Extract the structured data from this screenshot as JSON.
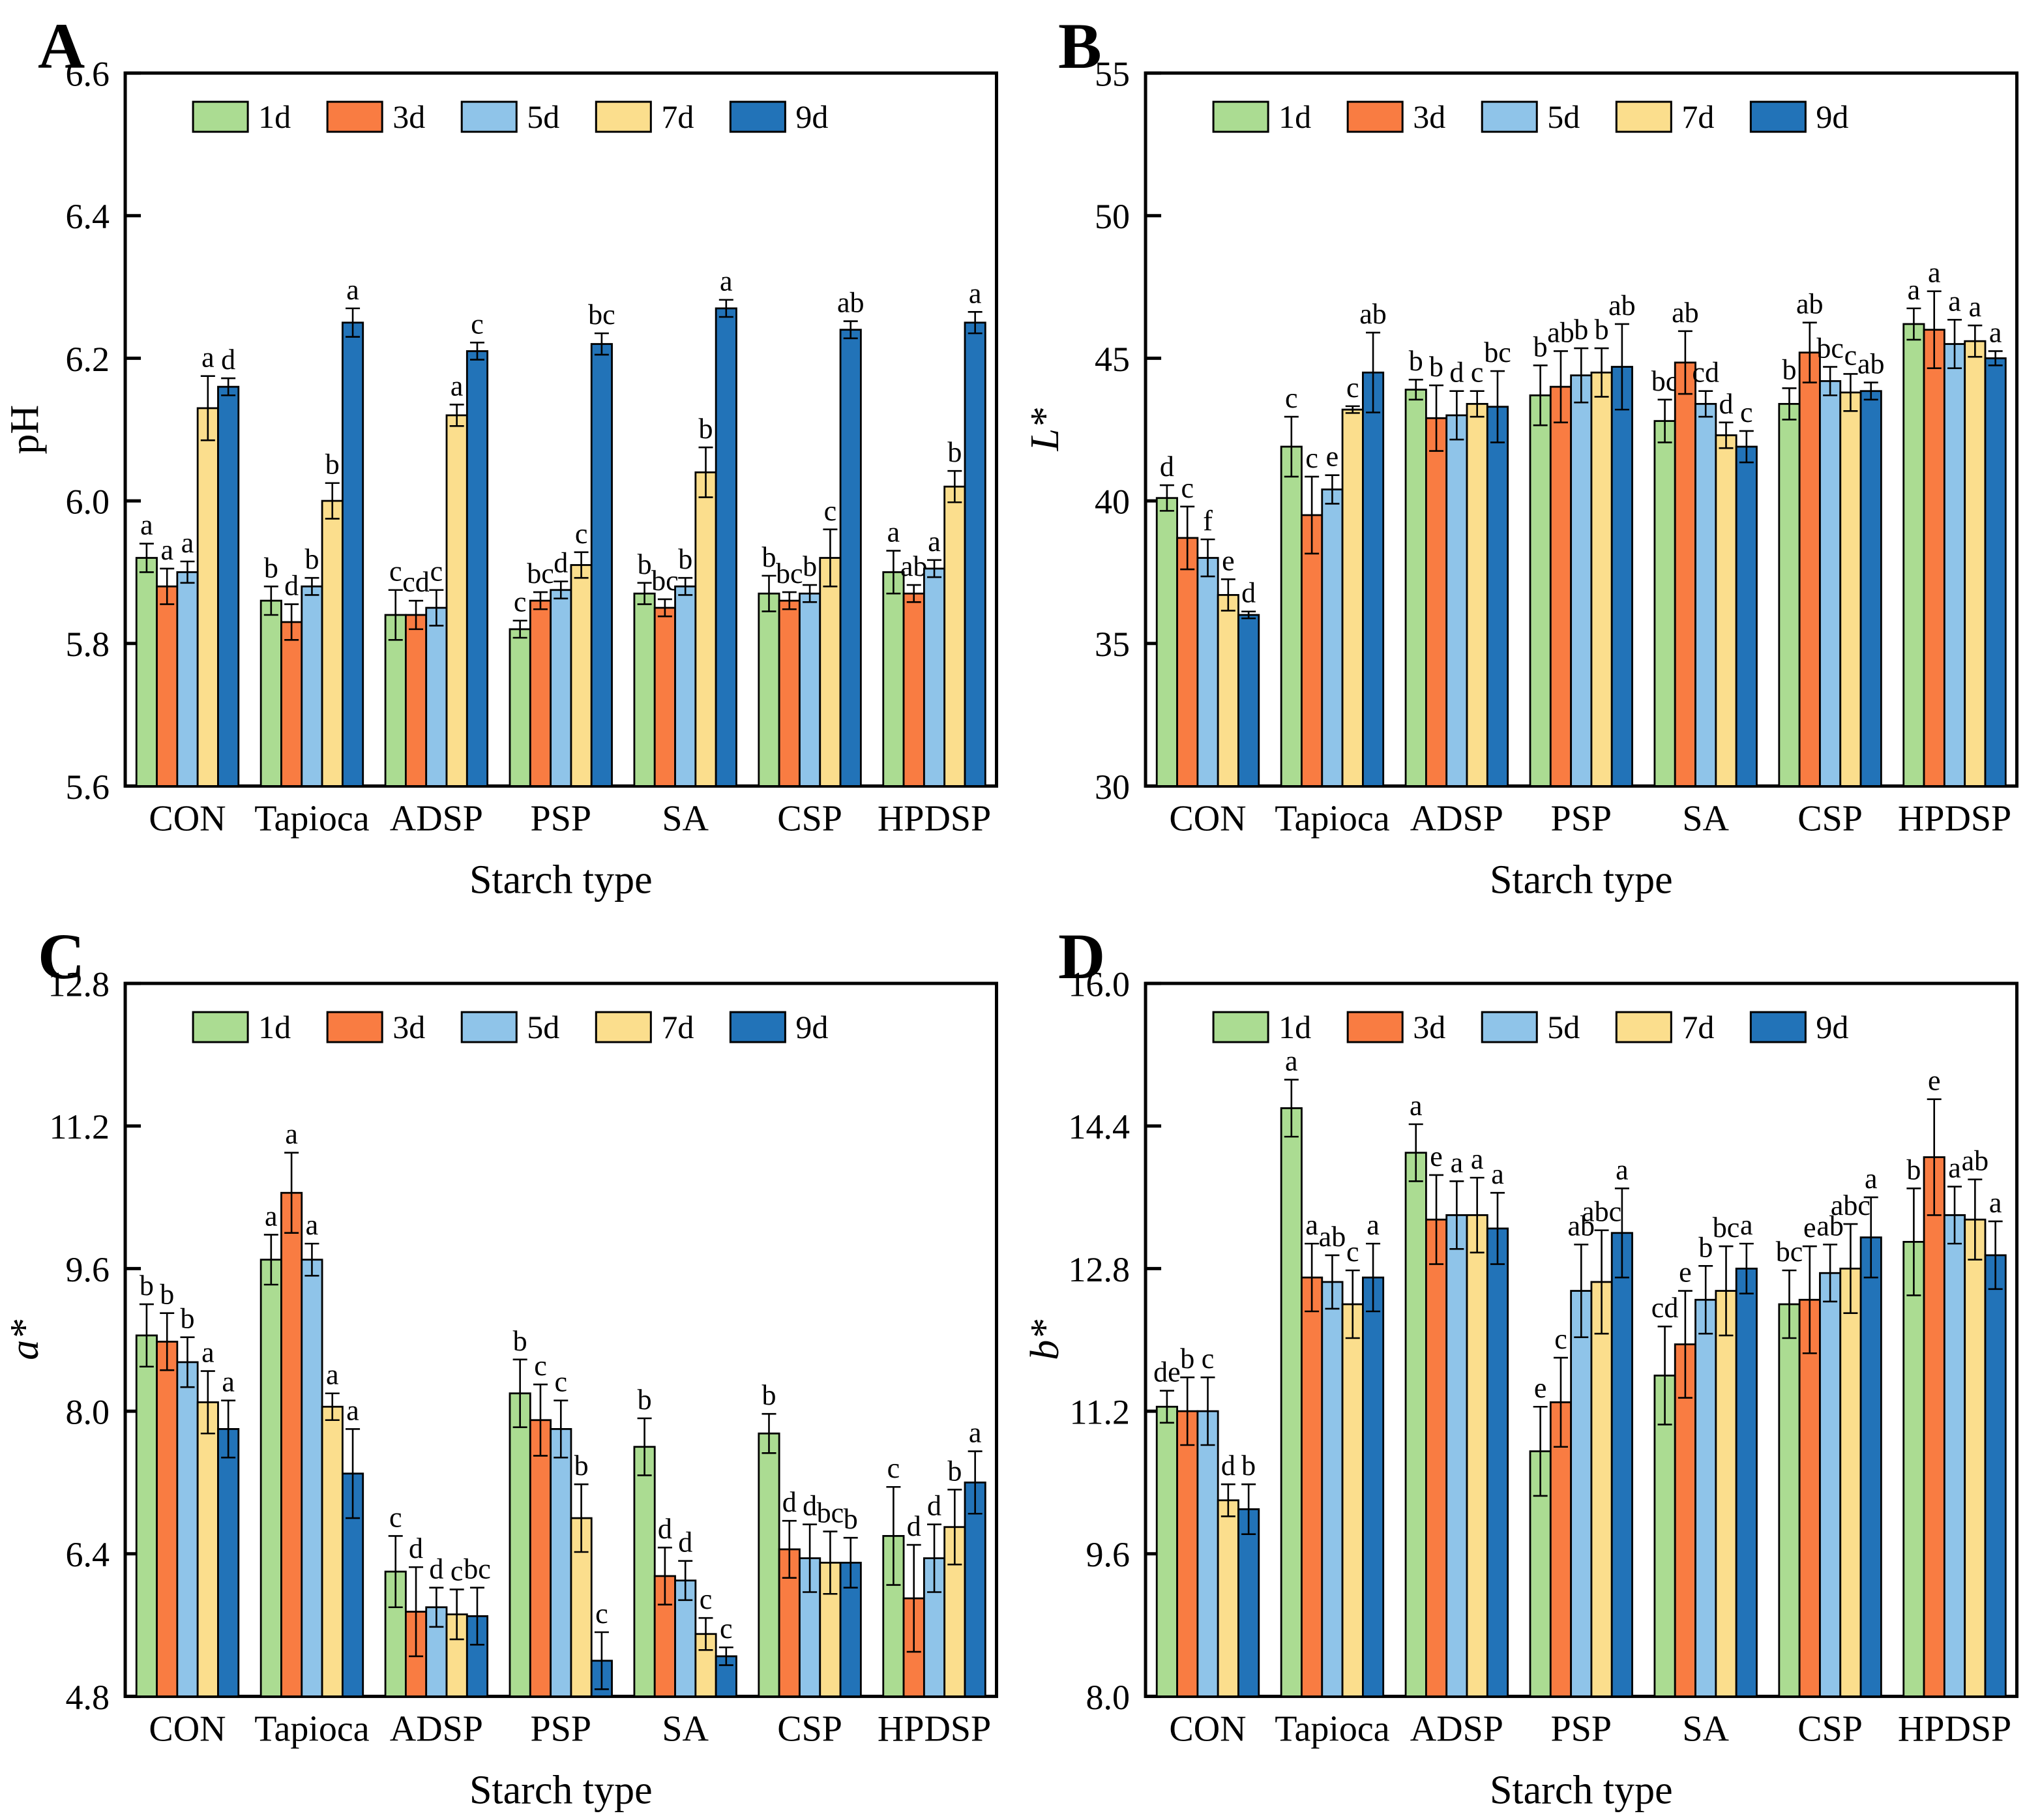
{
  "figure_title": "",
  "legend_labels": [
    "1d",
    "3d",
    "5d",
    "7d",
    "9d"
  ],
  "colors": {
    "d1": "#ABDC92",
    "d3": "#F97C42",
    "d5": "#8FC4E9",
    "d7": "#FBDE8D",
    "d9": "#2273B8",
    "axis": "#000000"
  },
  "chart_data": [
    {
      "panel_label": "A",
      "type": "bar",
      "ylabel": "pH",
      "ylabel_italic": false,
      "xlabel": "Starch type",
      "ylim": [
        5.6,
        6.6
      ],
      "yticks": [
        5.6,
        5.8,
        6.0,
        6.2,
        6.4,
        6.6
      ],
      "ytick_labels": [
        "5.6",
        "5.8",
        "6.0",
        "6.2",
        "6.4",
        "6.6"
      ],
      "categories": [
        "CON",
        "Tapioca",
        "ADSP",
        "PSP",
        "SA",
        "CSP",
        "HPDSP"
      ],
      "legend_position": "top-inside",
      "grid": false,
      "series": [
        {
          "name": "1d",
          "color": "#ABDC92",
          "values": [
            5.92,
            5.86,
            5.84,
            5.82,
            5.87,
            5.87,
            5.9
          ],
          "errors": [
            0.02,
            0.02,
            0.035,
            0.012,
            0.015,
            0.025,
            0.03
          ],
          "letters": [
            "a",
            "b",
            "c",
            "c",
            "b",
            "b",
            "a"
          ]
        },
        {
          "name": "3d",
          "color": "#F97C42",
          "values": [
            5.88,
            5.83,
            5.84,
            5.86,
            5.85,
            5.86,
            5.87
          ],
          "errors": [
            0.025,
            0.025,
            0.02,
            0.012,
            0.012,
            0.012,
            0.012
          ],
          "letters": [
            "a",
            "d",
            "cd",
            "bc",
            "bc",
            "bc",
            "ab"
          ]
        },
        {
          "name": "5d",
          "color": "#8FC4E9",
          "values": [
            5.9,
            5.88,
            5.85,
            5.875,
            5.88,
            5.87,
            5.905
          ],
          "errors": [
            0.015,
            0.012,
            0.025,
            0.012,
            0.012,
            0.012,
            0.012
          ],
          "letters": [
            "a",
            "b",
            "c",
            "d",
            "b",
            "b",
            "a"
          ]
        },
        {
          "name": "7d",
          "color": "#FBDE8D",
          "values": [
            6.13,
            6.0,
            6.12,
            5.91,
            6.04,
            5.92,
            6.02
          ],
          "errors": [
            0.045,
            0.025,
            0.015,
            0.018,
            0.035,
            0.04,
            0.022
          ],
          "letters": [
            "a",
            "b",
            "a",
            "c",
            "b",
            "c",
            "b"
          ]
        },
        {
          "name": "9d",
          "color": "#2273B8",
          "values": [
            6.16,
            6.25,
            6.21,
            6.22,
            6.27,
            6.24,
            6.25
          ],
          "errors": [
            0.012,
            0.02,
            0.012,
            0.015,
            0.012,
            0.012,
            0.015
          ],
          "letters": [
            "d",
            "a",
            "c",
            "bc",
            "a",
            "ab",
            "a"
          ]
        }
      ]
    },
    {
      "panel_label": "B",
      "type": "bar",
      "ylabel": "L*",
      "ylabel_italic": true,
      "xlabel": "Starch type",
      "ylim": [
        30,
        55
      ],
      "yticks": [
        30,
        35,
        40,
        45,
        50,
        55
      ],
      "ytick_labels": [
        "30",
        "35",
        "40",
        "45",
        "50",
        "55"
      ],
      "categories": [
        "CON",
        "Tapioca",
        "ADSP",
        "PSP",
        "SA",
        "CSP",
        "HPDSP"
      ],
      "legend_position": "top-inside",
      "grid": false,
      "series": [
        {
          "name": "1d",
          "color": "#ABDC92",
          "values": [
            40.1,
            41.9,
            43.9,
            43.7,
            42.8,
            43.4,
            46.2
          ],
          "errors": [
            0.45,
            1.05,
            0.35,
            1.05,
            0.75,
            0.55,
            0.55
          ],
          "letters": [
            "d",
            "c",
            "b",
            "b",
            "bc",
            "b",
            "a"
          ]
        },
        {
          "name": "3d",
          "color": "#F97C42",
          "values": [
            38.7,
            39.5,
            42.9,
            44.0,
            44.85,
            45.2,
            46.0
          ],
          "errors": [
            1.1,
            1.35,
            1.15,
            1.25,
            1.1,
            1.05,
            1.35
          ],
          "letters": [
            "c",
            "c",
            "b",
            "ab",
            "ab",
            "ab",
            "a"
          ]
        },
        {
          "name": "5d",
          "color": "#8FC4E9",
          "values": [
            38.0,
            40.4,
            43.0,
            44.4,
            43.4,
            44.2,
            45.5
          ],
          "errors": [
            0.65,
            0.5,
            0.85,
            0.95,
            0.45,
            0.5,
            0.85
          ],
          "letters": [
            "f",
            "e",
            "d",
            "b",
            "cd",
            "bc",
            "a"
          ]
        },
        {
          "name": "7d",
          "color": "#FBDE8D",
          "values": [
            36.7,
            43.2,
            43.4,
            44.5,
            42.3,
            43.8,
            45.6
          ],
          "errors": [
            0.55,
            0.12,
            0.45,
            0.85,
            0.45,
            0.65,
            0.55
          ],
          "letters": [
            "e",
            "c",
            "c",
            "b",
            "d",
            "c",
            "a"
          ]
        },
        {
          "name": "9d",
          "color": "#2273B8",
          "values": [
            36.0,
            44.5,
            43.3,
            44.7,
            41.9,
            43.85,
            45.0
          ],
          "errors": [
            0.12,
            1.4,
            1.25,
            1.5,
            0.55,
            0.3,
            0.25
          ],
          "letters": [
            "d",
            "ab",
            "bc",
            "ab",
            "c",
            "ab",
            "a"
          ]
        }
      ]
    },
    {
      "panel_label": "C",
      "type": "bar",
      "ylabel": "a*",
      "ylabel_italic": true,
      "xlabel": "Starch type",
      "ylim": [
        4.8,
        12.8
      ],
      "yticks": [
        4.8,
        6.4,
        8.0,
        9.6,
        11.2,
        12.8
      ],
      "ytick_labels": [
        "4.8",
        "6.4",
        "8.0",
        "9.6",
        "11.2",
        "12.8"
      ],
      "categories": [
        "CON",
        "Tapioca",
        "ADSP",
        "PSP",
        "SA",
        "CSP",
        "HPDSP"
      ],
      "legend_position": "top-inside",
      "grid": false,
      "series": [
        {
          "name": "1d",
          "color": "#ABDC92",
          "values": [
            8.85,
            9.7,
            6.2,
            8.2,
            7.6,
            7.75,
            6.6
          ],
          "errors": [
            0.35,
            0.28,
            0.4,
            0.38,
            0.32,
            0.22,
            0.55
          ],
          "letters": [
            "b",
            "a",
            "c",
            "b",
            "b",
            "b",
            "c"
          ]
        },
        {
          "name": "3d",
          "color": "#F97C42",
          "values": [
            8.78,
            10.45,
            5.75,
            7.9,
            6.15,
            6.45,
            5.9
          ],
          "errors": [
            0.32,
            0.45,
            0.5,
            0.4,
            0.32,
            0.32,
            0.6
          ],
          "letters": [
            "b",
            "a",
            "d",
            "c",
            "d",
            "d",
            "d"
          ]
        },
        {
          "name": "5d",
          "color": "#8FC4E9",
          "values": [
            8.55,
            9.7,
            5.8,
            7.8,
            6.1,
            6.35,
            6.35
          ],
          "errors": [
            0.28,
            0.18,
            0.22,
            0.32,
            0.22,
            0.38,
            0.38
          ],
          "letters": [
            "b",
            "a",
            "d",
            "c",
            "d",
            "d",
            "d"
          ]
        },
        {
          "name": "7d",
          "color": "#FBDE8D",
          "values": [
            8.1,
            8.05,
            5.72,
            6.8,
            5.5,
            6.3,
            6.7
          ],
          "errors": [
            0.35,
            0.15,
            0.28,
            0.38,
            0.18,
            0.35,
            0.42
          ],
          "letters": [
            "a",
            "a",
            "c",
            "b",
            "c",
            "bc",
            "b"
          ]
        },
        {
          "name": "9d",
          "color": "#2273B8",
          "values": [
            7.8,
            7.3,
            5.7,
            5.2,
            5.25,
            6.3,
            7.2
          ],
          "errors": [
            0.32,
            0.5,
            0.32,
            0.32,
            0.1,
            0.28,
            0.35
          ],
          "letters": [
            "a",
            "a",
            "bc",
            "c",
            "c",
            "b",
            "a"
          ]
        }
      ]
    },
    {
      "panel_label": "D",
      "type": "bar",
      "ylabel": "b*",
      "ylabel_italic": true,
      "xlabel": "Starch type",
      "ylim": [
        8.0,
        16.0
      ],
      "yticks": [
        8.0,
        9.6,
        11.2,
        12.8,
        14.4,
        16.0
      ],
      "ytick_labels": [
        "8.0",
        "9.6",
        "11.2",
        "12.8",
        "14.4",
        "16.0"
      ],
      "categories": [
        "CON",
        "Tapioca",
        "ADSP",
        "PSP",
        "SA",
        "CSP",
        "HPDSP"
      ],
      "legend_position": "top-inside",
      "grid": false,
      "series": [
        {
          "name": "1d",
          "color": "#ABDC92",
          "values": [
            11.25,
            14.6,
            14.1,
            10.75,
            11.6,
            12.4,
            13.1
          ],
          "errors": [
            0.18,
            0.32,
            0.32,
            0.5,
            0.55,
            0.38,
            0.6
          ],
          "letters": [
            "de",
            "a",
            "a",
            "e",
            "cd",
            "bc",
            "b"
          ]
        },
        {
          "name": "3d",
          "color": "#F97C42",
          "values": [
            11.2,
            12.7,
            13.35,
            11.3,
            11.95,
            12.45,
            14.05
          ],
          "errors": [
            0.38,
            0.38,
            0.5,
            0.5,
            0.6,
            0.6,
            0.65
          ],
          "letters": [
            "b",
            "a",
            "e",
            "c",
            "e",
            "e",
            "e"
          ]
        },
        {
          "name": "5d",
          "color": "#8FC4E9",
          "values": [
            11.2,
            12.65,
            13.4,
            12.55,
            12.45,
            12.75,
            13.4
          ],
          "errors": [
            0.38,
            0.3,
            0.38,
            0.52,
            0.38,
            0.32,
            0.32
          ],
          "letters": [
            "c",
            "ab",
            "a",
            "ab",
            "b",
            "ab",
            "a"
          ]
        },
        {
          "name": "7d",
          "color": "#FBDE8D",
          "values": [
            10.2,
            12.4,
            13.4,
            12.65,
            12.55,
            12.8,
            13.35
          ],
          "errors": [
            0.18,
            0.38,
            0.42,
            0.58,
            0.5,
            0.5,
            0.45
          ],
          "letters": [
            "d",
            "c",
            "a",
            "abc",
            "bc",
            "abc",
            "ab"
          ]
        },
        {
          "name": "9d",
          "color": "#2273B8",
          "values": [
            10.1,
            12.7,
            13.25,
            13.2,
            12.8,
            13.15,
            12.95
          ],
          "errors": [
            0.28,
            0.38,
            0.4,
            0.5,
            0.28,
            0.45,
            0.38
          ],
          "letters": [
            "b",
            "a",
            "a",
            "a",
            "a",
            "a",
            "a"
          ]
        }
      ]
    }
  ]
}
